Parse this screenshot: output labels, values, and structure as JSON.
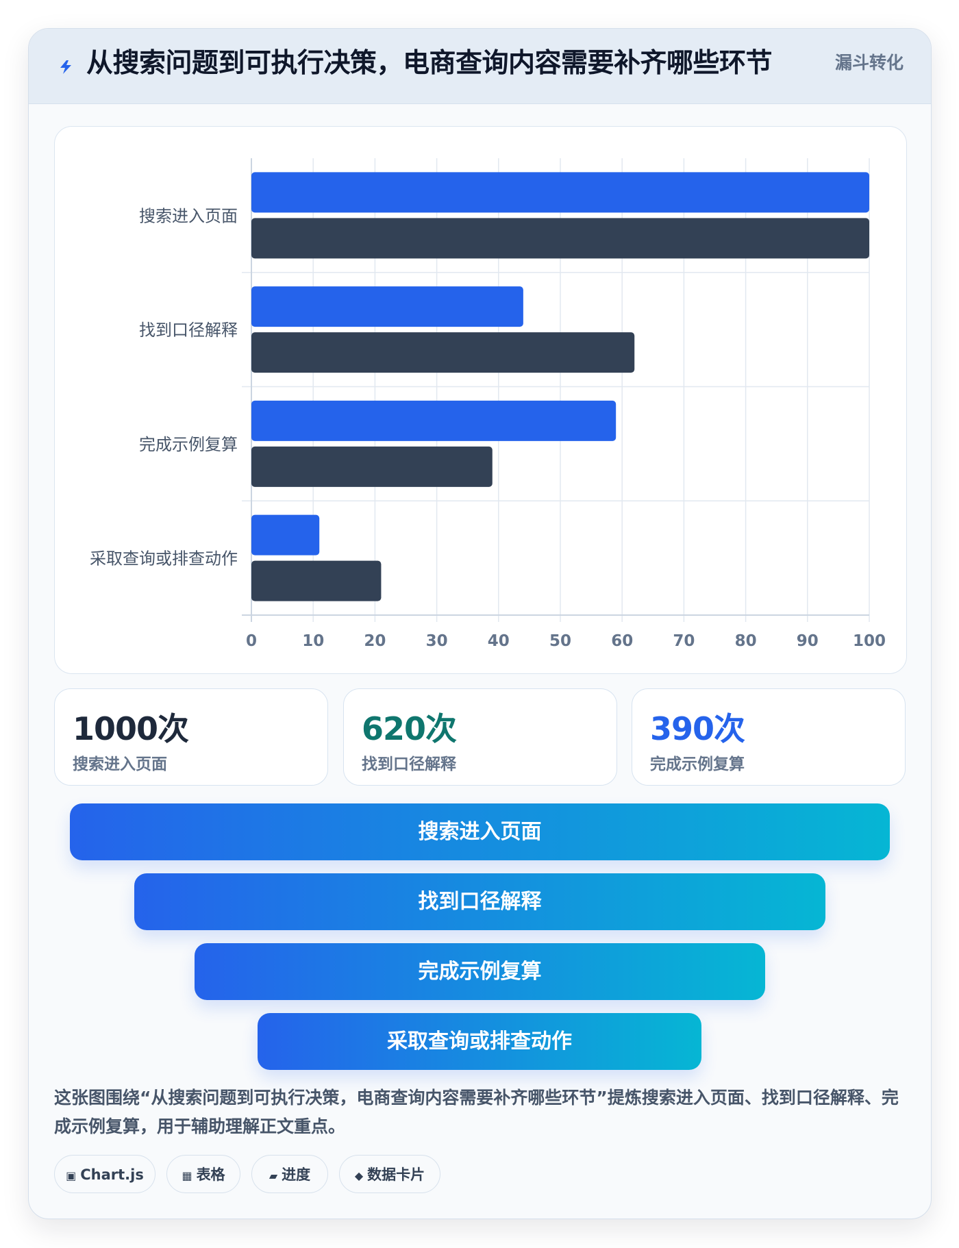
{
  "header": {
    "icon": "lightning-icon",
    "title": "从搜索问题到可执行决策，电商查询内容需要补齐哪些环节",
    "badge": "漏斗转化"
  },
  "chart_data": {
    "type": "bar",
    "orientation": "horizontal",
    "categories": [
      "搜索进入页面",
      "找到口径解释",
      "完成示例复算",
      "采取查询或排查动作"
    ],
    "series": [
      {
        "values": [
          100,
          44,
          59,
          11
        ],
        "color": "#2563eb"
      },
      {
        "values": [
          100,
          62,
          39,
          21
        ],
        "color": "#334155"
      }
    ],
    "xlim": [
      0,
      100
    ],
    "xticks": [
      "0",
      "10",
      "20",
      "30",
      "40",
      "50",
      "60",
      "70",
      "80",
      "90",
      "100"
    ],
    "grid": true,
    "legend": "none"
  },
  "stats": [
    {
      "value": "1000次",
      "label": "搜索进入页面",
      "color": "#1e293b"
    },
    {
      "value": "620次",
      "label": "找到口径解释",
      "color": "#0f766e"
    },
    {
      "value": "390次",
      "label": "完成示例复算",
      "color": "#2563eb"
    }
  ],
  "funnel": [
    "搜索进入页面",
    "找到口径解释",
    "完成示例复算",
    "采取查询或排查动作"
  ],
  "summary": "这张图围绕“从搜索问题到可执行决策，电商查询内容需要补齐哪些环节”提炼搜索进入页面、找到口径解释、完成示例复算，用于辅助理解正文重点。",
  "tags": [
    {
      "icon": "▣",
      "icon_name": "chart-icon",
      "label": "Chart.js"
    },
    {
      "icon": "▦",
      "icon_name": "table-icon",
      "label": "表格"
    },
    {
      "icon": "▰",
      "icon_name": "progress-icon",
      "label": "进度"
    },
    {
      "icon": "◆",
      "icon_name": "data-card-icon",
      "label": "数据卡片"
    }
  ]
}
